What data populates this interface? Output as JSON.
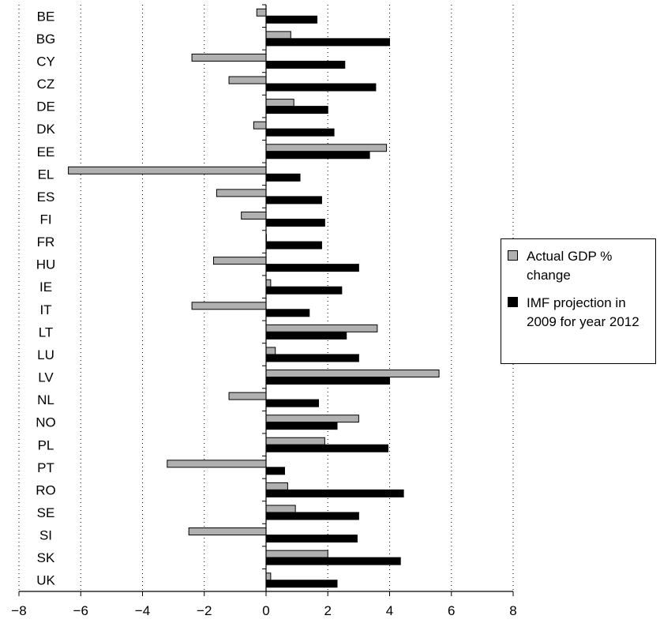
{
  "chart_data": {
    "type": "bar",
    "orientation": "horizontal",
    "title": "",
    "xlabel": "",
    "ylabel": "",
    "xlim": [
      -8,
      8
    ],
    "xticks": [
      -8,
      -6,
      -4,
      -2,
      0,
      2,
      4,
      6,
      8
    ],
    "xtick_labels": [
      "−8",
      "−6",
      "−4",
      "−2",
      "0",
      "2",
      "4",
      "6",
      "8"
    ],
    "grid": "vertical dotted",
    "legend_position": "right",
    "categories": [
      "BE",
      "BG",
      "CY",
      "CZ",
      "DE",
      "DK",
      "EE",
      "EL",
      "ES",
      "FI",
      "FR",
      "HU",
      "IE",
      "IT",
      "LT",
      "LU",
      "LV",
      "NL",
      "NO",
      "PL",
      "PT",
      "RO",
      "SE",
      "SI",
      "SK",
      "UK"
    ],
    "series": [
      {
        "name": "Actual GDP % change",
        "color": "#b0b0b0",
        "values": [
          -0.3,
          0.8,
          -2.4,
          -1.2,
          0.9,
          -0.4,
          3.9,
          -6.4,
          -1.6,
          -0.8,
          0.0,
          -1.7,
          0.15,
          -2.4,
          3.6,
          0.3,
          5.6,
          -1.2,
          3.0,
          1.9,
          -3.2,
          0.7,
          0.95,
          -2.5,
          2.0,
          0.15
        ]
      },
      {
        "name": "IMF projection in 2009 for year 2012",
        "color": "#000000",
        "values": [
          1.65,
          4.0,
          2.55,
          3.55,
          2.0,
          2.2,
          3.35,
          1.1,
          1.8,
          1.9,
          1.8,
          3.0,
          2.45,
          1.4,
          2.6,
          3.0,
          4.0,
          1.7,
          2.3,
          3.95,
          0.6,
          4.45,
          3.0,
          2.95,
          4.35,
          2.3
        ]
      }
    ]
  },
  "legend": {
    "items": [
      {
        "label": "Actual GDP % change",
        "color": "#b0b0b0"
      },
      {
        "label": "IMF projection in 2009 for year 2012",
        "color": "#000000"
      }
    ]
  }
}
